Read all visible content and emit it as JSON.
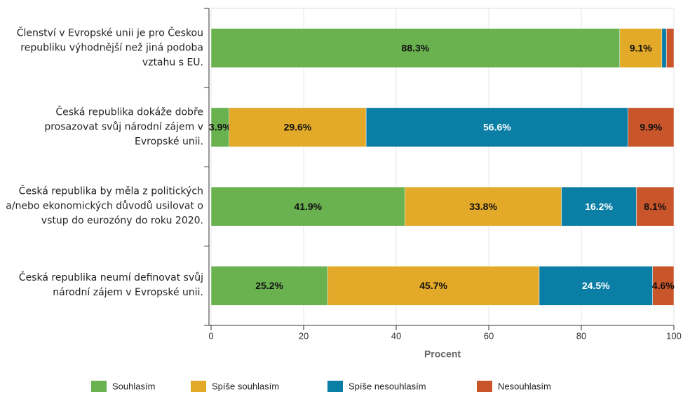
{
  "chart_data": {
    "type": "stacked_barh",
    "categories": [
      "Členství v Evropské unii je pro Českou republiku výhodnější než jiná podoba vztahu s EU.",
      "Česká republika dokáže dobře prosazovat svůj národní zájem v Evropské unii.",
      "Česká republika by měla z politických a/nebo ekonomických důvodů usilovat o vstup do eurozóny do roku 2020.",
      "Česká republika neumí definovat svůj národní zájem v Evropské unii."
    ],
    "series": [
      {
        "name": "Souhlasím",
        "color": "#6ab150",
        "label_color": "#111",
        "values": [
          88.3,
          3.9,
          41.9,
          25.2
        ],
        "value_labels": [
          "88.3%",
          "3.9%",
          "41.9%",
          "25.2%"
        ]
      },
      {
        "name": "Spíše souhlasím",
        "color": "#e3a928",
        "label_color": "#111",
        "values": [
          9.1,
          29.6,
          33.8,
          45.7
        ],
        "value_labels": [
          "9.1%",
          "29.6%",
          "33.8%",
          "45.7%"
        ]
      },
      {
        "name": "Spíše nesouhlasím",
        "color": "#0b7ea5",
        "label_color": "#fff",
        "values": [
          1.0,
          56.6,
          16.2,
          24.5
        ],
        "value_labels": [
          null,
          "56.6%",
          "16.2%",
          "24.5%"
        ]
      },
      {
        "name": "Nesouhlasím",
        "color": "#c9552b",
        "label_color": "#111",
        "values": [
          1.6,
          9.9,
          8.1,
          4.6
        ],
        "value_labels": [
          null,
          "9.9%",
          "8.1%",
          "4.6%"
        ]
      }
    ],
    "xlabel": "Procent",
    "xlim": [
      0,
      100
    ],
    "xticks": [
      0,
      20,
      40,
      60,
      80,
      100
    ],
    "grid": true
  }
}
